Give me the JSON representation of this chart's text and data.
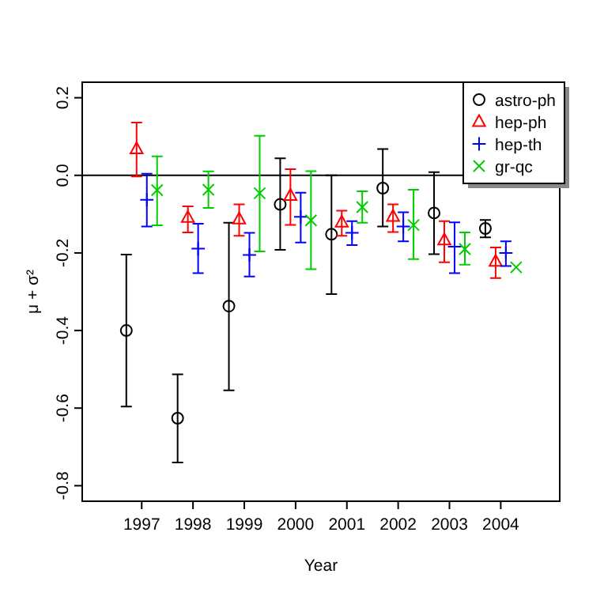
{
  "chart_data": {
    "type": "scatter",
    "xlabel": "Year",
    "ylabel": "μ + σ²",
    "xlim": [
      1995.84,
      2005.15
    ],
    "ylim": [
      -0.84,
      0.24
    ],
    "xticks": [
      1997,
      1998,
      1999,
      2000,
      2001,
      2002,
      2003,
      2004
    ],
    "yticks": [
      {
        "value": -0.8,
        "label": "-0.8"
      },
      {
        "value": -0.6,
        "label": "-0.6"
      },
      {
        "value": -0.4,
        "label": "-0.4"
      },
      {
        "value": -0.2,
        "label": "-0.2"
      },
      {
        "value": 0,
        "label": "0.0"
      },
      {
        "value": 0.2,
        "label": "0.2"
      }
    ],
    "grid": false,
    "legend": "top right",
    "ref_lines": [
      {
        "axis": "y",
        "value": 0,
        "color": "#000000"
      }
    ],
    "series": [
      {
        "name": "astro-ph",
        "color": "#000000",
        "marker": "circle",
        "x": [
          1996.7,
          1997.7,
          1998.7,
          1999.7,
          2000.7,
          2001.7,
          2002.7,
          2003.7
        ],
        "values": [
          -0.4,
          -0.626,
          -0.337,
          -0.075,
          -0.152,
          -0.033,
          -0.097,
          -0.137
        ],
        "errors": [
          [
            -0.596,
            -0.204
          ],
          [
            -0.74,
            -0.513
          ],
          [
            -0.554,
            -0.122
          ],
          [
            -0.192,
            0.044
          ],
          [
            -0.306,
            0.0
          ],
          [
            -0.132,
            0.068
          ],
          [
            -0.203,
            0.008
          ],
          [
            -0.16,
            -0.115
          ]
        ]
      },
      {
        "name": "hep-ph",
        "color": "#ff0000",
        "marker": "triangle",
        "x": [
          1996.9,
          1997.9,
          1998.9,
          1999.9,
          2000.9,
          2001.9,
          2002.9,
          2003.9
        ],
        "values": [
          0.068,
          -0.109,
          -0.113,
          -0.052,
          -0.121,
          -0.106,
          -0.167,
          -0.222
        ],
        "errors": [
          [
            -0.003,
            0.136
          ],
          [
            -0.147,
            -0.08
          ],
          [
            -0.156,
            -0.075
          ],
          [
            -0.128,
            0.016
          ],
          [
            -0.156,
            -0.091
          ],
          [
            -0.146,
            -0.075
          ],
          [
            -0.224,
            -0.118
          ],
          [
            -0.265,
            -0.186
          ]
        ]
      },
      {
        "name": "hep-th",
        "color": "#0000ff",
        "marker": "cross",
        "x": [
          1997.1,
          1998.1,
          1999.1,
          2000.1,
          2001.1,
          2002.1,
          2003.1,
          2004.1
        ],
        "values": [
          -0.063,
          -0.189,
          -0.205,
          -0.107,
          -0.148,
          -0.132,
          -0.184,
          -0.2
        ],
        "errors": [
          [
            -0.132,
            0.004
          ],
          [
            -0.252,
            -0.125
          ],
          [
            -0.261,
            -0.148
          ],
          [
            -0.173,
            -0.045
          ],
          [
            -0.18,
            -0.118
          ],
          [
            -0.17,
            -0.095
          ],
          [
            -0.252,
            -0.121
          ],
          [
            -0.234,
            -0.17
          ]
        ]
      },
      {
        "name": "gr-qc",
        "color": "#00cc00",
        "marker": "x",
        "x": [
          1997.3,
          1998.3,
          1999.3,
          2000.3,
          2001.3,
          2002.3,
          2003.3,
          2004.3
        ],
        "values": [
          -0.038,
          -0.037,
          -0.046,
          -0.116,
          -0.082,
          -0.128,
          -0.19,
          -0.237
        ],
        "errors": [
          [
            -0.129,
            0.049
          ],
          [
            -0.084,
            0.01
          ],
          [
            -0.196,
            0.102
          ],
          [
            -0.242,
            0.011
          ],
          [
            -0.122,
            -0.041
          ],
          [
            -0.216,
            -0.037
          ],
          [
            -0.23,
            -0.147
          ],
          null
        ]
      }
    ]
  }
}
